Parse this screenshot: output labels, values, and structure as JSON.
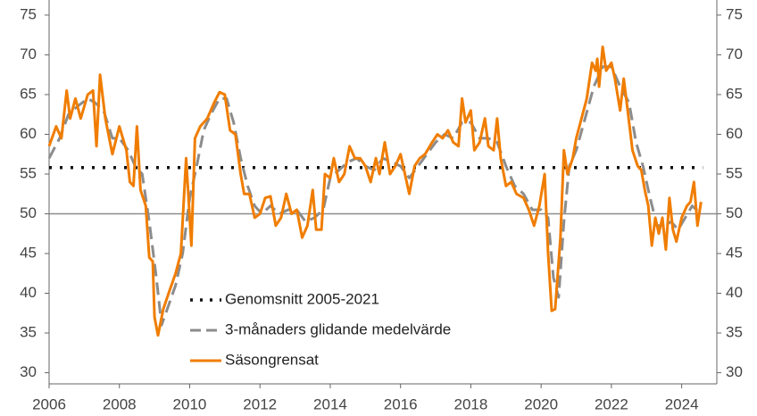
{
  "chart_data": {
    "type": "line",
    "xlim": [
      2006,
      2025
    ],
    "xticks": [
      2006,
      2008,
      2010,
      2012,
      2014,
      2016,
      2018,
      2020,
      2022,
      2024
    ],
    "ylim": [
      28.6,
      76.9
    ],
    "yticks": [
      30,
      35,
      40,
      45,
      50,
      55,
      60,
      65,
      70,
      75
    ],
    "hline": 50,
    "legend": "lower-left",
    "series": [
      {
        "name": "Genomsnitt 2005-2021",
        "color": "#111111",
        "style": "dotted",
        "x": [
          2006,
          2024.6
        ],
        "values": [
          55.8,
          55.8
        ]
      },
      {
        "name": "3-månaders glidande medelvärde",
        "color": "#8c8c8c",
        "style": "dashed",
        "x": [
          2006.0,
          2006.3,
          2006.55,
          2006.8,
          2007.1,
          2007.3,
          2007.55,
          2007.8,
          2008.0,
          2008.25,
          2008.45,
          2008.65,
          2008.85,
          2009.05,
          2009.2,
          2009.4,
          2009.6,
          2009.8,
          2010.0,
          2010.2,
          2010.4,
          2010.6,
          2010.85,
          2011.05,
          2011.25,
          2011.45,
          2011.65,
          2011.85,
          2012.05,
          2012.3,
          2012.55,
          2012.8,
          2013.05,
          2013.3,
          2013.55,
          2013.8,
          2014.0,
          2014.25,
          2014.5,
          2014.75,
          2015.0,
          2015.25,
          2015.5,
          2015.75,
          2016.0,
          2016.25,
          2016.5,
          2016.75,
          2017.0,
          2017.25,
          2017.5,
          2017.75,
          2018.0,
          2018.25,
          2018.5,
          2018.75,
          2019.0,
          2019.25,
          2019.5,
          2019.75,
          2020.0,
          2020.2,
          2020.35,
          2020.5,
          2020.65,
          2020.8,
          2021.0,
          2021.25,
          2021.5,
          2021.75,
          2022.0,
          2022.25,
          2022.5,
          2022.7,
          2022.9,
          2023.1,
          2023.3,
          2023.5,
          2023.7,
          2023.9,
          2024.1,
          2024.3,
          2024.55
        ],
        "values": [
          57,
          59.5,
          62.5,
          63.5,
          64.5,
          64,
          63,
          59.5,
          59.5,
          58,
          56,
          55,
          49,
          42,
          36,
          38.5,
          41,
          45,
          52,
          56,
          60.5,
          62.5,
          64.5,
          64.5,
          61.5,
          57,
          53.5,
          51,
          50,
          51,
          50,
          50.5,
          50.5,
          49,
          49.5,
          50.5,
          54.5,
          55.5,
          56.5,
          57,
          56,
          55.5,
          57,
          56.5,
          56,
          54.5,
          56,
          57.5,
          59,
          60,
          59.5,
          61.5,
          61.5,
          59.5,
          59.5,
          59,
          56,
          53.5,
          52.5,
          50.5,
          50.5,
          49.5,
          42,
          39.5,
          49,
          56,
          58,
          62,
          66,
          68.5,
          68.5,
          66,
          64,
          59,
          56,
          52,
          48.5,
          48.5,
          49,
          48,
          49.5,
          51,
          50
        ]
      },
      {
        "name": "Säsongrensat",
        "color": "#f07d00",
        "style": "solid",
        "x": [
          2006.0,
          2006.2,
          2006.35,
          2006.5,
          2006.6,
          2006.75,
          2006.9,
          2007.1,
          2007.25,
          2007.35,
          2007.45,
          2007.6,
          2007.8,
          2008.0,
          2008.2,
          2008.3,
          2008.4,
          2008.5,
          2008.6,
          2008.75,
          2008.85,
          2008.95,
          2009.0,
          2009.1,
          2009.25,
          2009.4,
          2009.6,
          2009.75,
          2009.9,
          2010.05,
          2010.15,
          2010.3,
          2010.5,
          2010.7,
          2010.85,
          2011.0,
          2011.15,
          2011.3,
          2011.45,
          2011.55,
          2011.7,
          2011.85,
          2012.0,
          2012.15,
          2012.3,
          2012.45,
          2012.6,
          2012.75,
          2012.9,
          2013.05,
          2013.2,
          2013.35,
          2013.5,
          2013.6,
          2013.75,
          2013.85,
          2014.0,
          2014.1,
          2014.25,
          2014.4,
          2014.55,
          2014.7,
          2014.85,
          2015.0,
          2015.15,
          2015.3,
          2015.4,
          2015.55,
          2015.7,
          2015.85,
          2016.0,
          2016.15,
          2016.25,
          2016.4,
          2016.55,
          2016.7,
          2016.9,
          2017.05,
          2017.2,
          2017.35,
          2017.5,
          2017.65,
          2017.75,
          2017.85,
          2018.0,
          2018.1,
          2018.25,
          2018.4,
          2018.5,
          2018.65,
          2018.75,
          2018.85,
          2019.0,
          2019.15,
          2019.3,
          2019.5,
          2019.65,
          2019.8,
          2019.95,
          2020.1,
          2020.2,
          2020.3,
          2020.4,
          2020.55,
          2020.65,
          2020.75,
          2020.9,
          2021.0,
          2021.15,
          2021.3,
          2021.45,
          2021.55,
          2021.6,
          2021.65,
          2021.75,
          2021.85,
          2022.0,
          2022.1,
          2022.25,
          2022.35,
          2022.45,
          2022.6,
          2022.75,
          2022.85,
          2022.95,
          2023.05,
          2023.15,
          2023.25,
          2023.35,
          2023.45,
          2023.55,
          2023.65,
          2023.75,
          2023.85,
          2024.0,
          2024.15,
          2024.25,
          2024.35,
          2024.45,
          2024.55
        ],
        "values": [
          58.5,
          61,
          59.5,
          65.5,
          62,
          64.5,
          62,
          65,
          65.5,
          58.5,
          67.5,
          62,
          57.5,
          61,
          58,
          54,
          53.5,
          61,
          53,
          51,
          44.5,
          44,
          37,
          34.7,
          38,
          40,
          42.5,
          45,
          57,
          46,
          59.5,
          61,
          62,
          64,
          65.3,
          65,
          60.5,
          60,
          55,
          52.5,
          52.5,
          49.5,
          50,
          52,
          52.2,
          48.5,
          49.5,
          52.5,
          50,
          50.5,
          47,
          48.5,
          53,
          48,
          48,
          55,
          54.5,
          57,
          54,
          55,
          58.5,
          57,
          57,
          56,
          54,
          57,
          55,
          59,
          55,
          56,
          57.5,
          54.5,
          52.5,
          56,
          57,
          57.5,
          59,
          60,
          59.5,
          60.5,
          59,
          58.5,
          64.5,
          61.5,
          63,
          58,
          59,
          62,
          58.5,
          58,
          62,
          57,
          53.5,
          54,
          52.5,
          52,
          50.5,
          48.5,
          51,
          55,
          45,
          37.8,
          38,
          47,
          58,
          55,
          57,
          59.5,
          62,
          64.5,
          69,
          68,
          69.5,
          66,
          71,
          68,
          69,
          67,
          63,
          67,
          63.5,
          58,
          56,
          55.5,
          53,
          51,
          46,
          49.5,
          47.5,
          49.5,
          45.5,
          52,
          48,
          46.5,
          49.5,
          51,
          51.5,
          54,
          48.5,
          51.5
        ]
      }
    ]
  }
}
